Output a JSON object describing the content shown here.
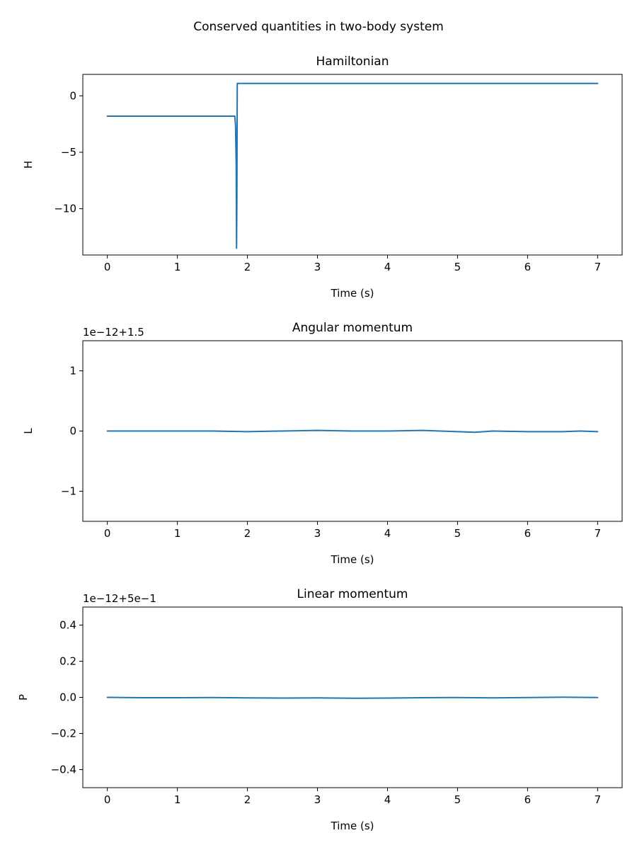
{
  "figure": {
    "suptitle": "Conserved quantities in two-body system"
  },
  "colors": {
    "series": "#1f77b4"
  },
  "chart_data": [
    {
      "type": "line",
      "title": "Hamiltonian",
      "xlabel": "Time (s)",
      "ylabel": "H",
      "offset_text": "",
      "xlim": [
        -0.35,
        7.35
      ],
      "ylim": [
        -14.1,
        1.9
      ],
      "xticks": [
        0,
        1,
        2,
        3,
        4,
        5,
        6,
        7
      ],
      "xtick_labels": [
        "0",
        "1",
        "2",
        "3",
        "4",
        "5",
        "6",
        "7"
      ],
      "yticks": [
        -10,
        -5,
        0
      ],
      "ytick_labels": [
        "−10",
        "−5",
        "0"
      ],
      "grid": false,
      "series": [
        {
          "x": [
            0,
            1.0,
            1.82,
            1.83,
            1.84,
            1.845,
            1.85,
            1.855,
            1.86,
            2.5,
            4.0,
            5.5,
            7.0
          ],
          "y": [
            -1.8,
            -1.8,
            -1.8,
            -2.6,
            -6.0,
            -13.5,
            -9.0,
            1.1,
            1.1,
            1.1,
            1.1,
            1.1,
            1.1
          ]
        }
      ]
    },
    {
      "type": "line",
      "title": "Angular momentum",
      "xlabel": "Time (s)",
      "ylabel": "L",
      "offset_text": "1e−12+1.5",
      "xlim": [
        -0.35,
        7.35
      ],
      "ylim": [
        -1.5,
        1.5
      ],
      "xticks": [
        0,
        1,
        2,
        3,
        4,
        5,
        6,
        7
      ],
      "xtick_labels": [
        "0",
        "1",
        "2",
        "3",
        "4",
        "5",
        "6",
        "7"
      ],
      "yticks": [
        -1,
        0,
        1
      ],
      "ytick_labels": [
        "−1",
        "0",
        "1"
      ],
      "grid": false,
      "series": [
        {
          "x": [
            0,
            0.5,
            1.0,
            1.5,
            2.0,
            2.5,
            3.0,
            3.5,
            4.0,
            4.5,
            5.0,
            5.25,
            5.5,
            6.0,
            6.5,
            6.75,
            7.0
          ],
          "y": [
            0.0,
            0.0,
            0.0,
            0.0,
            -0.01,
            0.0,
            0.01,
            0.0,
            0.0,
            0.01,
            -0.01,
            -0.02,
            0.0,
            -0.01,
            -0.01,
            0.0,
            -0.01
          ]
        }
      ]
    },
    {
      "type": "line",
      "title": "Linear momentum",
      "xlabel": "Time (s)",
      "ylabel": "P",
      "offset_text": "1e−12+5e−1",
      "xlim": [
        -0.35,
        7.35
      ],
      "ylim": [
        -0.5,
        0.5
      ],
      "xticks": [
        0,
        1,
        2,
        3,
        4,
        5,
        6,
        7
      ],
      "xtick_labels": [
        "0",
        "1",
        "2",
        "3",
        "4",
        "5",
        "6",
        "7"
      ],
      "yticks": [
        -0.4,
        -0.2,
        0.0,
        0.2,
        0.4
      ],
      "ytick_labels": [
        "−0.4",
        "−0.2",
        "0.0",
        "0.2",
        "0.4"
      ],
      "grid": false,
      "series": [
        {
          "x": [
            0,
            0.5,
            1.0,
            1.5,
            2.0,
            2.5,
            3.0,
            3.5,
            4.0,
            4.5,
            5.0,
            5.5,
            6.0,
            6.5,
            7.0
          ],
          "y": [
            0.0,
            -0.002,
            -0.002,
            -0.001,
            -0.003,
            -0.004,
            -0.003,
            -0.005,
            -0.004,
            -0.002,
            -0.001,
            -0.003,
            -0.001,
            0.001,
            -0.001
          ]
        }
      ]
    }
  ]
}
